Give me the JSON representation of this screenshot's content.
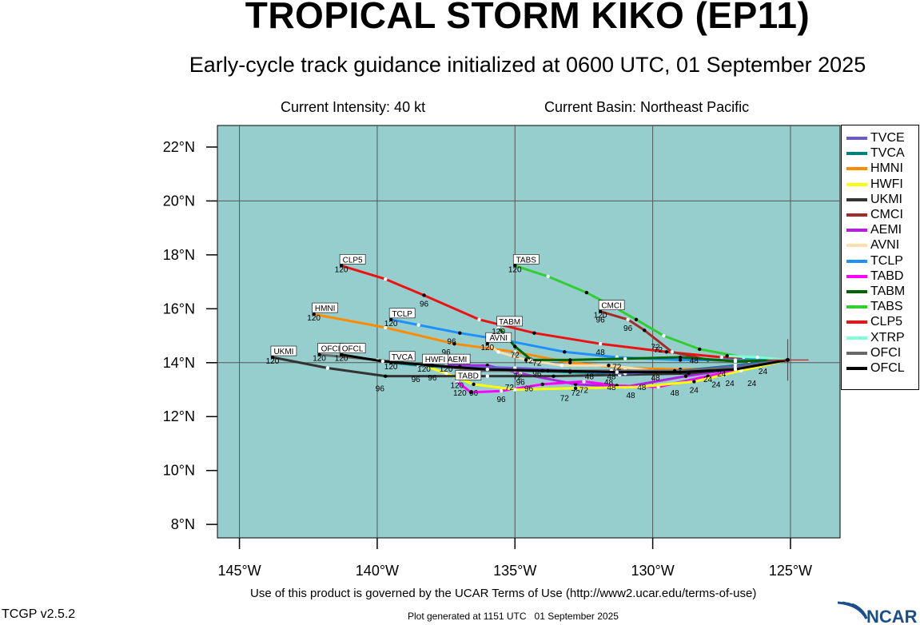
{
  "header": {
    "title": "TROPICAL STORM KIKO (EP11)",
    "subtitle": "Early-cycle track guidance initialized at 0600 UTC, 01 September 2025",
    "intensity": "Current Intensity: 40 kt",
    "basin": "Current Basin: Northeast Pacific"
  },
  "footer": {
    "terms": "Use of this product is governed by the UCAR Terms of Use (http://www2.ucar.edu/terms-of-use)",
    "version": "TCGP v2.5.2",
    "generated": "Plot generated at 1151 UTC   01 September 2025",
    "logo_text": "NCAR"
  },
  "map": {
    "lon_range": [
      -145.8,
      -123.2
    ],
    "lat_range": [
      7.5,
      22.8
    ],
    "lat_ticks": [
      8,
      10,
      12,
      14,
      16,
      18,
      20,
      22
    ],
    "lon_ticks": [
      -145,
      -140,
      -135,
      -130,
      -125
    ],
    "lat_labels": [
      "8°N",
      "10°N",
      "12°N",
      "14°N",
      "16°N",
      "18°N",
      "20°N",
      "22°N"
    ],
    "lon_labels": [
      "145°W",
      "140°W",
      "135°W",
      "130°W",
      "125°W"
    ],
    "grid_lat": [
      14,
      20
    ],
    "grid_lon": [
      -145,
      -140,
      -135,
      -130,
      -125
    ],
    "ocean_color": "#96cece",
    "storm_position": [
      -125.1,
      14.1
    ]
  },
  "legend": [
    {
      "name": "TVCE",
      "color": "#6a5acd"
    },
    {
      "name": "TVCA",
      "color": "#008080"
    },
    {
      "name": "HMNI",
      "color": "#ff8c00"
    },
    {
      "name": "HWFI",
      "color": "#ffff00"
    },
    {
      "name": "UKMI",
      "color": "#333333"
    },
    {
      "name": "CMCI",
      "color": "#a52a2a"
    },
    {
      "name": "AEMI",
      "color": "#b020e0"
    },
    {
      "name": "AVNI",
      "color": "#ffdead"
    },
    {
      "name": "TCLP",
      "color": "#1e90ff"
    },
    {
      "name": "TABD",
      "color": "#ff00ff"
    },
    {
      "name": "TABM",
      "color": "#006400"
    },
    {
      "name": "TABS",
      "color": "#32cd32"
    },
    {
      "name": "CLP5",
      "color": "#ee1111"
    },
    {
      "name": "XTRP",
      "color": "#7fffd4"
    },
    {
      "name": "OFCI",
      "color": "#696969"
    },
    {
      "name": "OFCL",
      "color": "#000000"
    }
  ],
  "tracks": [
    {
      "name": "CLP5",
      "color": "#ee1111",
      "label": "CLP5",
      "end_hour": "120",
      "points": [
        [
          -125.1,
          14.1
        ],
        [
          -127.5,
          14.2
        ],
        [
          -129.5,
          14.4
        ],
        [
          -131.9,
          14.7
        ],
        [
          -134.3,
          15.1
        ],
        [
          -136.3,
          15.6
        ],
        [
          -138.3,
          16.5
        ],
        [
          -139.7,
          17.1
        ],
        [
          -141.3,
          17.6
        ]
      ],
      "hour_labels": [
        [
          "96",
          -138.3,
          16.5
        ],
        [
          "48",
          -131.9,
          14.7
        ]
      ]
    },
    {
      "name": "TABS",
      "color": "#32cd32",
      "label": "TABS",
      "end_hour": "120",
      "points": [
        [
          -125.1,
          14.1
        ],
        [
          -126.7,
          14.2
        ],
        [
          -128.3,
          14.5
        ],
        [
          -129.6,
          15.0
        ],
        [
          -130.6,
          15.6
        ],
        [
          -131.3,
          16.0
        ],
        [
          -132.4,
          16.6
        ],
        [
          -133.8,
          17.2
        ],
        [
          -135.0,
          17.6
        ]
      ],
      "hour_labels": [
        [
          "72",
          -129.8,
          14.8
        ],
        [
          "48",
          -128.5,
          14.4
        ]
      ]
    },
    {
      "name": "CMCI",
      "color": "#a52a2a",
      "label": "CMCI",
      "end_hour": "120",
      "points": [
        [
          -125.1,
          14.1
        ],
        [
          -126.5,
          14.05
        ],
        [
          -128.0,
          14.1
        ],
        [
          -129.3,
          14.4
        ],
        [
          -130.3,
          15.2
        ],
        [
          -130.9,
          15.6
        ],
        [
          -131.9,
          15.9
        ]
      ],
      "hour_labels": [
        [
          "96",
          -131.9,
          15.9
        ],
        [
          "96",
          -130.9,
          15.6
        ],
        [
          "72",
          -129.9,
          14.9
        ]
      ]
    },
    {
      "name": "HMNI",
      "color": "#ff8c00",
      "label": "HMNI",
      "end_hour": "120",
      "points": [
        [
          -125.1,
          14.1
        ],
        [
          -127.0,
          13.8
        ],
        [
          -129.0,
          13.75
        ],
        [
          -131.0,
          13.8
        ],
        [
          -133.0,
          14.0
        ],
        [
          -135.0,
          14.4
        ],
        [
          -137.2,
          14.7
        ],
        [
          -139.7,
          15.3
        ],
        [
          -142.3,
          15.8
        ]
      ],
      "hour_labels": [
        [
          "96",
          -137.5,
          14.7
        ],
        [
          "72",
          -134.5,
          14.4
        ],
        [
          "48",
          -131.5,
          13.8
        ],
        [
          "24",
          -128.0,
          13.7
        ]
      ]
    },
    {
      "name": "TCLP",
      "color": "#1e90ff",
      "label": "TCLP",
      "end_hour": "120",
      "points": [
        [
          -125.1,
          14.1
        ],
        [
          -127.0,
          14.1
        ],
        [
          -129.0,
          14.1
        ],
        [
          -131.3,
          14.2
        ],
        [
          -133.2,
          14.4
        ],
        [
          -135.2,
          14.8
        ],
        [
          -137.0,
          15.1
        ],
        [
          -138.5,
          15.4
        ],
        [
          -139.5,
          15.6
        ]
      ],
      "hour_labels": [
        [
          "96",
          -137.3,
          15.1
        ]
      ]
    },
    {
      "name": "AVNI",
      "color": "#ffdead",
      "label": "AVNI",
      "end_hour": "120",
      "points": [
        [
          -125.1,
          14.1
        ],
        [
          -126.5,
          13.9
        ],
        [
          -128.2,
          13.7
        ],
        [
          -130.0,
          13.7
        ],
        [
          -131.6,
          13.9
        ],
        [
          -133.3,
          13.9
        ],
        [
          -134.6,
          14.1
        ],
        [
          -135.6,
          14.4
        ],
        [
          -136.0,
          14.7
        ]
      ],
      "hour_labels": [
        [
          "72",
          -134.2,
          14.3
        ]
      ]
    },
    {
      "name": "TABM",
      "color": "#006400",
      "label": "TABM",
      "end_hour": "120",
      "points": [
        [
          -125.1,
          14.1
        ],
        [
          -127.0,
          14.05
        ],
        [
          -129.0,
          14.2
        ],
        [
          -131.0,
          14.15
        ],
        [
          -133.0,
          14.1
        ],
        [
          -134.4,
          14.1
        ],
        [
          -135.0,
          14.6
        ],
        [
          -135.6,
          15.3
        ]
      ],
      "hour_labels": [
        [
          "72",
          -135.0,
          14.6
        ]
      ]
    },
    {
      "name": "AEMI",
      "color": "#b020e0",
      "label": "AEMI",
      "end_hour": "120",
      "points": [
        [
          -125.1,
          14.1
        ],
        [
          -126.8,
          13.8
        ],
        [
          -128.8,
          13.5
        ],
        [
          -131.0,
          13.1
        ],
        [
          -132.8,
          13.2
        ],
        [
          -134.8,
          13.6
        ],
        [
          -136.0,
          13.9
        ],
        [
          -137.5,
          13.9
        ]
      ],
      "hour_labels": [
        [
          "72",
          -132.8,
          13.2
        ],
        [
          "96",
          -134.8,
          13.6
        ]
      ]
    },
    {
      "name": "TABD",
      "color": "#ff00ff",
      "label": "TABD",
      "end_hour": "120",
      "points": [
        [
          -125.1,
          14.1
        ],
        [
          -126.5,
          13.8
        ],
        [
          -128.0,
          13.5
        ],
        [
          -129.8,
          13.1
        ],
        [
          -131.3,
          13.15
        ],
        [
          -132.5,
          13.3
        ],
        [
          -134.0,
          13.2
        ],
        [
          -135.5,
          12.95
        ],
        [
          -136.6,
          12.9
        ],
        [
          -137.1,
          13.3
        ]
      ],
      "hour_labels": [
        [
          "72",
          -132.5,
          13.3
        ],
        [
          "96",
          -135.5,
          12.95
        ],
        [
          "120",
          -137.0,
          13.2
        ]
      ]
    },
    {
      "name": "HWFI",
      "color": "#ffff00",
      "label": "HWFI",
      "end_hour": "120",
      "points": [
        [
          -125.1,
          14.1
        ],
        [
          -126.8,
          13.7
        ],
        [
          -128.5,
          13.3
        ],
        [
          -130.5,
          13.1
        ],
        [
          -132.8,
          13.05
        ],
        [
          -135.0,
          13.0
        ],
        [
          -136.5,
          13.2
        ],
        [
          -137.5,
          13.6
        ],
        [
          -138.3,
          13.9
        ]
      ],
      "hour_labels": [
        [
          "72",
          -133.2,
          13.0
        ],
        [
          "96",
          -136.5,
          13.2
        ],
        [
          "24",
          -128.5,
          13.3
        ]
      ]
    },
    {
      "name": "UKMI",
      "color": "#333333",
      "label": "UKMI",
      "end_hour": "120",
      "points": [
        [
          -125.1,
          14.1
        ],
        [
          -126.8,
          13.8
        ],
        [
          -128.7,
          13.6
        ],
        [
          -131.2,
          13.55
        ],
        [
          -133.6,
          13.5
        ],
        [
          -136.0,
          13.5
        ],
        [
          -139.7,
          13.5
        ],
        [
          -141.8,
          13.8
        ],
        [
          -143.8,
          14.2
        ]
      ],
      "hour_labels": [
        [
          "96",
          -139.9,
          13.35
        ],
        [
          "72",
          -135.2,
          13.4
        ],
        [
          "48",
          -131.5,
          13.4
        ]
      ]
    },
    {
      "name": "TVCA",
      "color": "#008080",
      "label": "TVCA",
      "end_hour": "120",
      "points": [
        [
          -125.1,
          14.1
        ],
        [
          -127.0,
          13.9
        ],
        [
          -129.0,
          13.7
        ],
        [
          -131.0,
          13.6
        ],
        [
          -133.0,
          13.65
        ],
        [
          -135.0,
          13.7
        ],
        [
          -137.0,
          13.8
        ],
        [
          -138.5,
          13.9
        ],
        [
          -139.5,
          14.0
        ]
      ],
      "hour_labels": [
        [
          "96",
          -138.6,
          13.7
        ]
      ]
    },
    {
      "name": "TVCE",
      "color": "#6a5acd",
      "label": "",
      "end_hour": "",
      "points": [
        [
          -125.1,
          14.1
        ],
        [
          -127.0,
          13.85
        ],
        [
          -129.0,
          13.7
        ],
        [
          -131.0,
          13.6
        ],
        [
          -133.0,
          13.7
        ],
        [
          -135.0,
          13.8
        ],
        [
          -137.0,
          13.85
        ],
        [
          -138.3,
          13.9
        ]
      ],
      "hour_labels": [
        [
          "96",
          -138.0,
          13.75
        ]
      ]
    },
    {
      "name": "XTRP",
      "color": "#7fffd4",
      "label": "",
      "end_hour": "",
      "points": [
        [
          -125.1,
          14.1
        ],
        [
          -126.2,
          14.2
        ],
        [
          -127.3,
          14.25
        ]
      ],
      "hour_labels": []
    },
    {
      "name": "OFCI",
      "color": "#696969",
      "label": "OFCI",
      "end_hour": "120",
      "points": [
        [
          -125.1,
          14.1
        ],
        [
          -127.0,
          13.8
        ],
        [
          -129.2,
          13.7
        ],
        [
          -131.5,
          13.7
        ],
        [
          -134.0,
          13.7
        ],
        [
          -136.3,
          13.7
        ],
        [
          -138.0,
          13.9
        ],
        [
          -140.0,
          14.1
        ],
        [
          -142.1,
          14.3
        ]
      ],
      "hour_labels": []
    },
    {
      "name": "OFCL",
      "color": "#000000",
      "label": "OFCL",
      "end_hour": "120",
      "points": [
        [
          -125.1,
          14.1
        ],
        [
          -127.0,
          13.75
        ],
        [
          -129.0,
          13.65
        ],
        [
          -131.3,
          13.65
        ],
        [
          -133.8,
          13.7
        ],
        [
          -136.0,
          13.75
        ],
        [
          -138.0,
          13.9
        ],
        [
          -139.8,
          14.05
        ],
        [
          -141.3,
          14.3
        ]
      ],
      "hour_labels": []
    }
  ],
  "extra_hour_labels": [
    [
      "24",
      -126.4,
      13.55
    ],
    [
      "24",
      -126.0,
      14.0
    ],
    [
      "24",
      -127.2,
      13.55
    ],
    [
      "24",
      -127.7,
      13.5
    ],
    [
      "24",
      -127.5,
      13.9
    ],
    [
      "48",
      -129.9,
      13.75
    ],
    [
      "48",
      -130.4,
      13.4
    ],
    [
      "48",
      -130.8,
      13.1
    ],
    [
      "48",
      -131.6,
      13.6
    ],
    [
      "48",
      -132.3,
      13.8
    ],
    [
      "48",
      -129.2,
      13.2
    ],
    [
      "72",
      -131.3,
      14.15
    ],
    [
      "96",
      -134.2,
      13.9
    ],
    [
      "72",
      -134.9,
      13.8
    ],
    [
      "96",
      -134.5,
      13.35
    ]
  ]
}
